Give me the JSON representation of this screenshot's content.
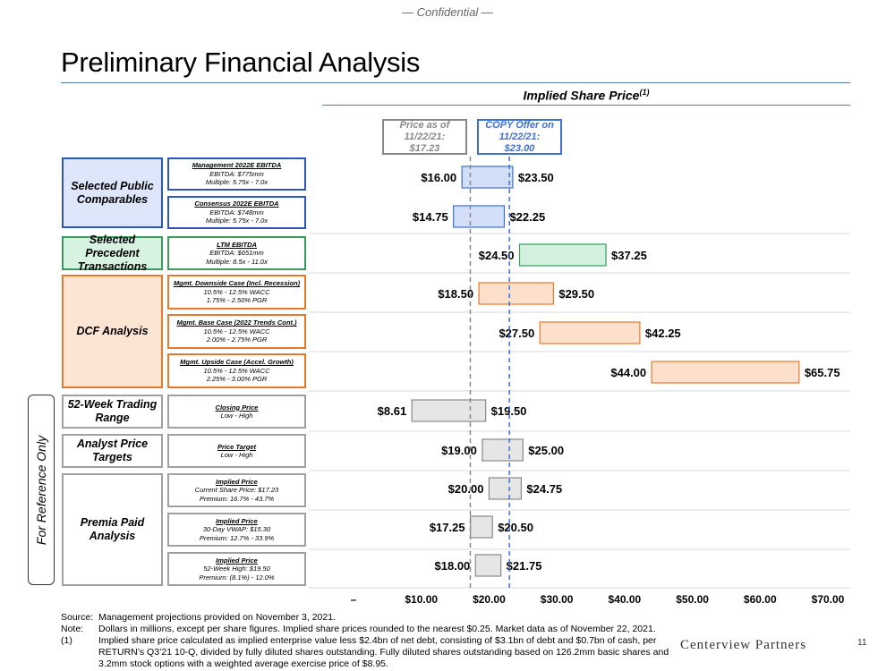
{
  "header": {
    "confidential": "— Confidential —",
    "title": "Preliminary Financial Analysis"
  },
  "chart_header": {
    "title": "Implied Share Price",
    "superscript": "(1)"
  },
  "reference_boxes": {
    "price": {
      "line1": "Price as of",
      "line2": "11/22/21:",
      "line3": "$17.23",
      "value": 17.23
    },
    "offer": {
      "line1": "COPY Offer on",
      "line2": "11/22/21:",
      "line3": "$23.00",
      "value": 23.0
    }
  },
  "categories": [
    {
      "name": "Selected Public Comparables",
      "color": "blue"
    },
    {
      "name": "Selected Precedent Transactions",
      "color": "green"
    },
    {
      "name": "DCF Analysis",
      "color": "orange"
    },
    {
      "name": "52-Week Trading Range",
      "color": "gray"
    },
    {
      "name": "Analyst Price Targets",
      "color": "gray"
    },
    {
      "name": "Premia Paid Analysis",
      "color": "gray"
    }
  ],
  "rows": [
    {
      "h": "Management 2022E EBITDA",
      "l1": "EBITDA: $775mm",
      "l2": "Multiple: 5.75x - 7.0x",
      "low": 16.0,
      "high": 23.5,
      "low_label": "$16.00",
      "high_label": "$23.50",
      "color": "blue"
    },
    {
      "h": "Consensus 2022E EBITDA",
      "l1": "EBITDA: $748mm",
      "l2": "Multiple: 5.75x - 7.0x",
      "low": 14.75,
      "high": 22.25,
      "low_label": "$14.75",
      "high_label": "$22.25",
      "color": "blue"
    },
    {
      "h": "LTM EBITDA",
      "l1": "EBITDA: $651mm",
      "l2": "Multiple: 8.5x - 11.0x",
      "low": 24.5,
      "high": 37.25,
      "low_label": "$24.50",
      "high_label": "$37.25",
      "color": "green"
    },
    {
      "h": "Mgmt. Downside Case (Incl. Recession)",
      "l1": "10.5% - 12.5% WACC",
      "l2": "1.75% - 2.50% PGR",
      "low": 18.5,
      "high": 29.5,
      "low_label": "$18.50",
      "high_label": "$29.50",
      "color": "orange"
    },
    {
      "h": "Mgmt. Base Case (2022 Trends Cont.)",
      "l1": "10.5% - 12.5% WACC",
      "l2": "2.00% - 2.75% PGR",
      "low": 27.5,
      "high": 42.25,
      "low_label": "$27.50",
      "high_label": "$42.25",
      "color": "orange"
    },
    {
      "h": "Mgmt. Upside Case (Accel. Growth)",
      "l1": "10.5% - 12.5% WACC",
      "l2": "2.25% - 3.00% PGR",
      "low": 44.0,
      "high": 65.75,
      "low_label": "$44.00",
      "high_label": "$65.75",
      "color": "orange"
    },
    {
      "h": "Closing Price",
      "l1": "Low - High",
      "l2": "",
      "low": 8.61,
      "high": 19.5,
      "low_label": "$8.61",
      "high_label": "$19.50",
      "color": "gray"
    },
    {
      "h": "Price Target",
      "l1": "Low - High",
      "l2": "",
      "low": 19.0,
      "high": 25.0,
      "low_label": "$19.00",
      "high_label": "$25.00",
      "color": "gray"
    },
    {
      "h": "Implied Price",
      "l1": "Current Share Price: $17.23",
      "l2": "Premium: 16.7% - 43.7%",
      "low": 20.0,
      "high": 24.75,
      "low_label": "$20.00",
      "high_label": "$24.75",
      "color": "gray"
    },
    {
      "h": "Implied Price",
      "l1": "30-Day VWAP: $15.30",
      "l2": "Premium: 12.7% - 33.9%",
      "low": 17.25,
      "high": 20.5,
      "low_label": "$17.25",
      "high_label": "$20.50",
      "color": "gray"
    },
    {
      "h": "Implied Price",
      "l1": "52-Week High: $19.50",
      "l2": "Premium: (8.1%) - 12.0%",
      "low": 18.0,
      "high": 21.75,
      "low_label": "$18.00",
      "high_label": "$21.75",
      "color": "gray"
    }
  ],
  "chart_data": {
    "type": "bar",
    "orientation": "horizontal-floating",
    "title": "Implied Share Price",
    "xlim": [
      0,
      70
    ],
    "x_ticks": [
      0,
      10,
      20,
      30,
      40,
      50,
      60,
      70
    ],
    "x_tick_labels": [
      "–",
      "$10.00",
      "$20.00",
      "$30.00",
      "$40.00",
      "$50.00",
      "$60.00",
      "$70.00"
    ],
    "reference_lines": [
      {
        "name": "Price as of 11/22/21",
        "value": 17.23
      },
      {
        "name": "COPY Offer on 11/22/21",
        "value": 23.0
      }
    ]
  },
  "side_label": "For Reference Only",
  "notes": [
    {
      "k": "Source:",
      "v": "Management projections provided on November 3, 2021."
    },
    {
      "k": "Note:",
      "v": "Dollars in millions, except per share figures. Implied share prices rounded to the nearest $0.25. Market data as of November 22, 2021."
    },
    {
      "k": "(1)",
      "v": "Implied share price calculated as implied enterprise value less $2.4bn of net debt, consisting of $3.1bn of debt and $0.7bn of cash, per RETURN’s Q3’21 10-Q, divided by fully diluted shares outstanding. Fully diluted shares outstanding based on 126.2mm basic shares and 3.2mm stock options with a weighted average exercise price of $8.95."
    }
  ],
  "footer": {
    "logo": "Centerview Partners",
    "page": "11"
  },
  "colors": {
    "blue_fill": "#d3def9",
    "blue_stroke": "#3e6fd1",
    "green_fill": "#d3f1de",
    "green_stroke": "#3b9a5e",
    "orange_fill": "#fde0cc",
    "orange_stroke": "#e8792a",
    "gray_fill": "#e6e6e6",
    "gray_stroke": "#888888"
  }
}
